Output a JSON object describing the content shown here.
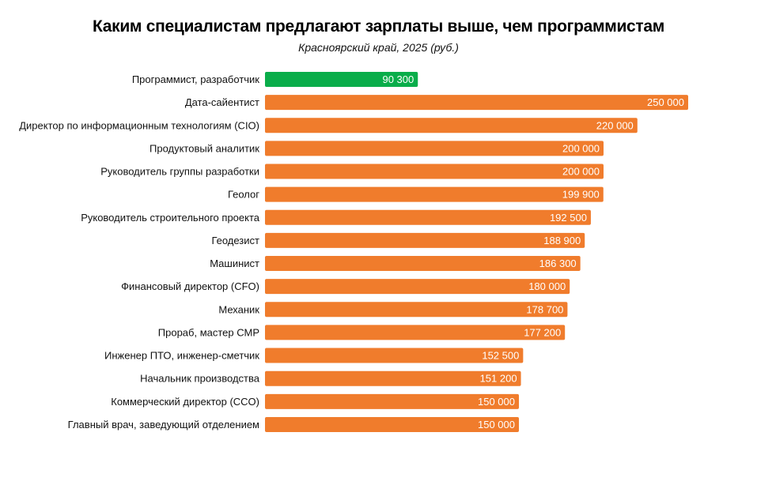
{
  "chart_data": {
    "type": "bar",
    "orientation": "horizontal",
    "title": "Каким специалистам предлагают зарплаты выше, чем программистам",
    "subtitle": "Красноярский край, 2025 (руб.)",
    "categories": [
      "Программист, разработчик",
      "Дата-сайентист",
      "Директор по информационным технологиям (CIO)",
      "Продуктовый аналитик",
      "Руководитель группы разработки",
      "Геолог",
      "Руководитель строительного проекта",
      "Геодезист",
      "Машинист",
      "Финансовый директор (CFO)",
      "Механик",
      "Прораб, мастер СМР",
      "Инженер ПТО, инженер-сметчик",
      "Начальник производства",
      "Коммерческий директор (CCO)",
      "Главный врач, заведующий отделением"
    ],
    "values": [
      90300,
      250000,
      220000,
      200000,
      200000,
      199900,
      192500,
      188900,
      186300,
      180000,
      178700,
      177200,
      152500,
      151200,
      150000,
      150000
    ],
    "data_labels": [
      "90 300",
      "250 000",
      "220 000",
      "200 000",
      "200 000",
      "199 900",
      "192 500",
      "188 900",
      "186 300",
      "180 000",
      "178 700",
      "177 200",
      "152 500",
      "151 200",
      "150 000",
      "150 000"
    ],
    "xlim": [
      0,
      250000
    ],
    "grid": false,
    "colors": {
      "highlight": "#0aad4a",
      "default": "#f07c2c"
    }
  }
}
